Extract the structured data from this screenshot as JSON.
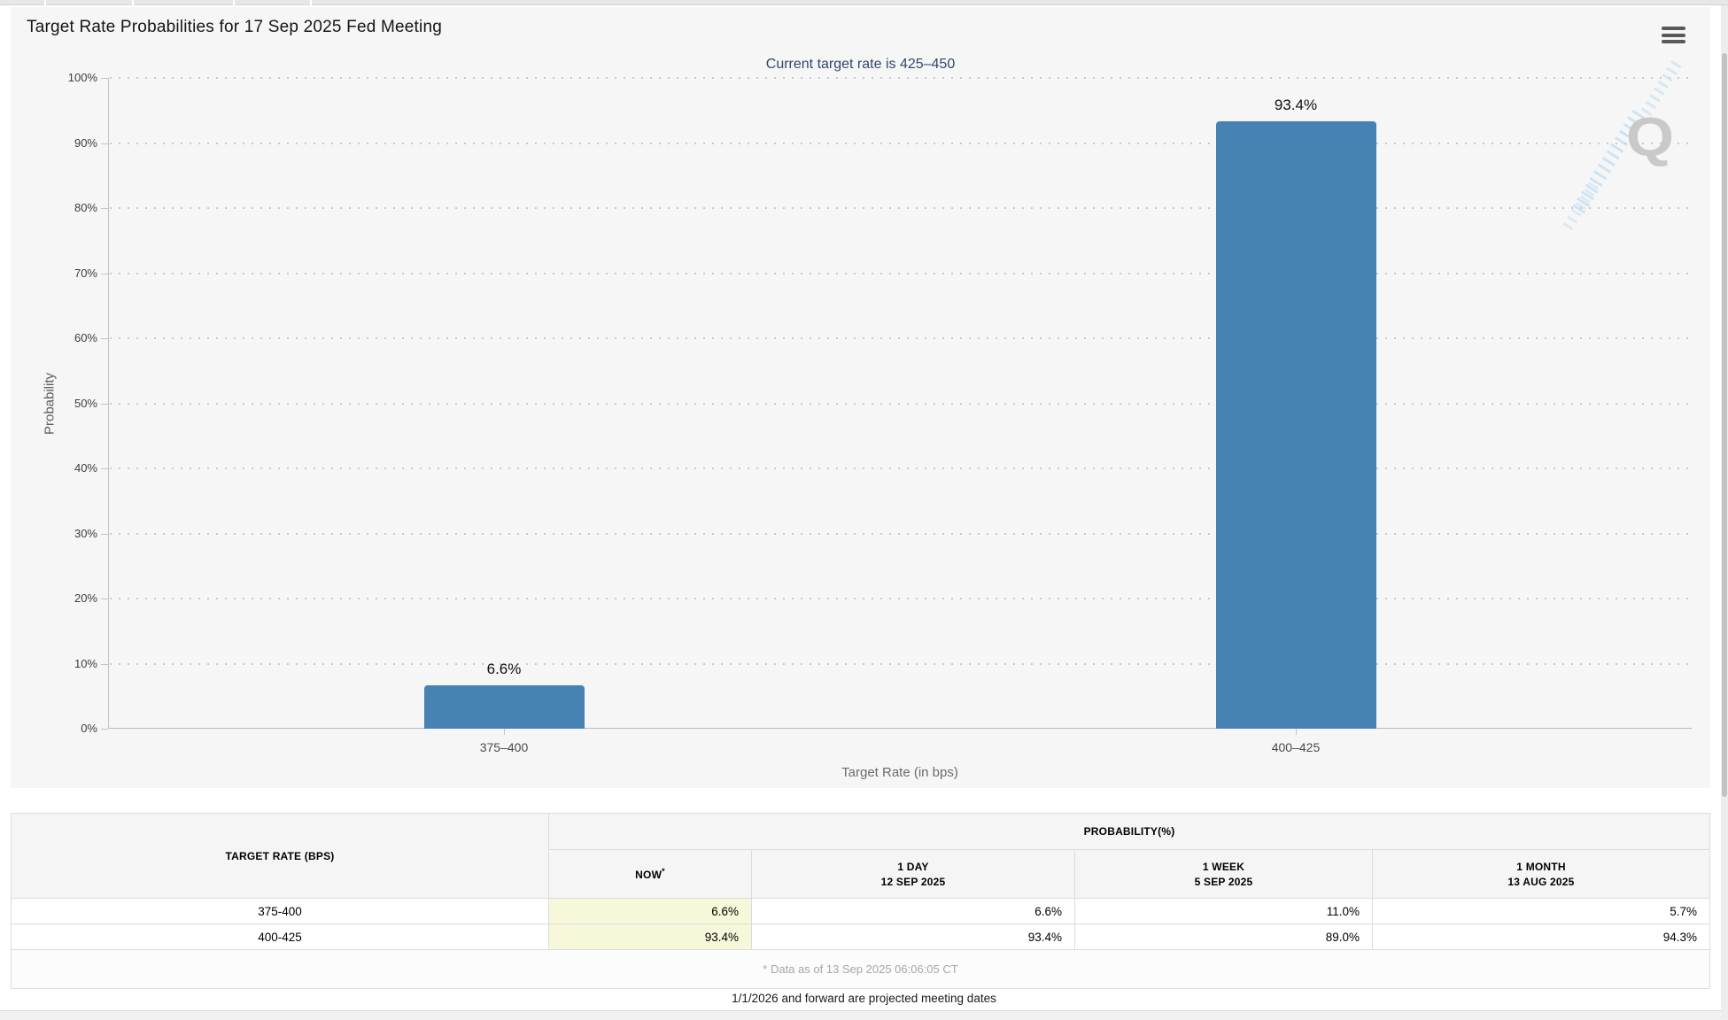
{
  "chart": {
    "title": "Target Rate Probabilities for 17 Sep 2025 Fed Meeting",
    "subtitle": "Current target rate is 425–450",
    "menu_icon": "hamburger-icon",
    "watermark_letter": "Q",
    "bar_color": "#4682b4",
    "panel_background": "#f6f6f6"
  },
  "chart_data": {
    "type": "bar",
    "title": "Target Rate Probabilities for 17 Sep 2025 Fed Meeting",
    "subtitle": "Current target rate is 425–450",
    "categories": [
      "375–400",
      "400–425"
    ],
    "values": [
      6.6,
      93.4
    ],
    "value_labels": [
      "6.6%",
      "93.4%"
    ],
    "xlabel": "Target Rate (in bps)",
    "ylabel": "Probability",
    "ylim": [
      0,
      100
    ],
    "ytick_step": 10,
    "ytick_suffix": "%",
    "grid": "dotted horizontal",
    "legend": "none",
    "bar_color": "#4682b4"
  },
  "table": {
    "col1_header": "TARGET RATE (BPS)",
    "group_header": "PROBABILITY(%)",
    "columns": [
      {
        "label": "NOW",
        "sup": "*",
        "sub": ""
      },
      {
        "label": "1 DAY",
        "sup": "",
        "sub": "12 SEP 2025"
      },
      {
        "label": "1 WEEK",
        "sup": "",
        "sub": "5 SEP 2025"
      },
      {
        "label": "1 MONTH",
        "sup": "",
        "sub": "13 AUG 2025"
      }
    ],
    "rows": [
      {
        "rate": "375-400",
        "values": [
          "6.6%",
          "6.6%",
          "11.0%",
          "5.7%"
        ]
      },
      {
        "rate": "400-425",
        "values": [
          "93.4%",
          "93.4%",
          "89.0%",
          "94.3%"
        ]
      }
    ],
    "footnote": "* Data as of 13 Sep 2025 06:06:05 CT",
    "now_highlight_color": "#f7f7d9"
  },
  "page": {
    "projected_note": "1/1/2026 and forward are projected meeting dates"
  }
}
